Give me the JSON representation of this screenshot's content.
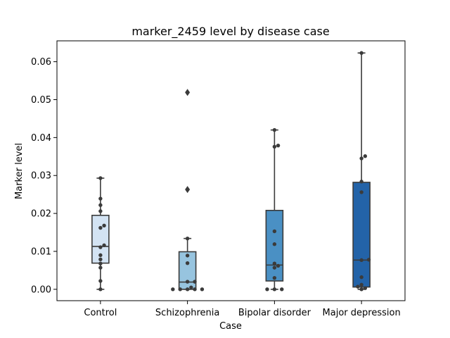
{
  "chart_data": {
    "type": "box",
    "title": "marker_2459 level by disease case",
    "xlabel": "Case",
    "ylabel": "Marker level",
    "ylim": [
      -0.003,
      0.0655
    ],
    "yticks": [
      0.0,
      0.01,
      0.02,
      0.03,
      0.04,
      0.05,
      0.06
    ],
    "ytick_labels": [
      "0.00",
      "0.01",
      "0.02",
      "0.03",
      "0.04",
      "0.05",
      "0.06"
    ],
    "categories": [
      "Control",
      "Schizophrenia",
      "Bipolar disorder",
      "Major depression"
    ],
    "colors": [
      "#d3e3f3",
      "#97c4df",
      "#4a90c4",
      "#2363a8"
    ],
    "boxes": [
      {
        "q1": 0.0069,
        "median": 0.0113,
        "q3": 0.0195,
        "whisker_low": 0.0,
        "whisker_high": 0.0293,
        "outliers": []
      },
      {
        "q1": 0.0,
        "median": 0.0019,
        "q3": 0.0099,
        "whisker_low": 0.0,
        "whisker_high": 0.0134,
        "outliers": [
          0.0263,
          0.0519
        ]
      },
      {
        "q1": 0.0022,
        "median": 0.0064,
        "q3": 0.0208,
        "whisker_low": 0.0,
        "whisker_high": 0.042,
        "outliers": []
      },
      {
        "q1": 0.0006,
        "median": 0.0077,
        "q3": 0.0282,
        "whisker_low": 0.0,
        "whisker_high": 0.0623,
        "outliers": []
      }
    ],
    "points": [
      [
        0.0,
        0.0022,
        0.0057,
        0.0068,
        0.0079,
        0.009,
        0.0111,
        0.0116,
        0.0162,
        0.0168,
        0.0206,
        0.0222,
        0.0239,
        0.0293
      ],
      [
        0.0,
        0.0,
        0.0,
        0.0,
        0.0,
        0.0005,
        0.002,
        0.002,
        0.0069,
        0.0089,
        0.0134,
        0.0263,
        0.0519
      ],
      [
        0.0,
        0.0,
        0.0,
        0.003,
        0.0057,
        0.0062,
        0.0068,
        0.0119,
        0.0153,
        0.0376,
        0.0379,
        0.042
      ],
      [
        0.0,
        0.0003,
        0.0007,
        0.0012,
        0.0032,
        0.0077,
        0.0078,
        0.0256,
        0.0284,
        0.0345,
        0.0351,
        0.0623
      ]
    ],
    "grid": false,
    "legend": "none"
  }
}
